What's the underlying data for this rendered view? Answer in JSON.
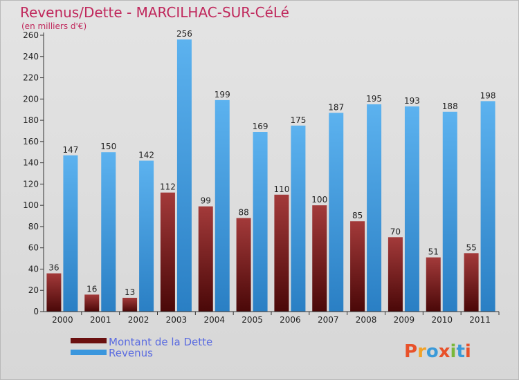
{
  "chart_data": {
    "type": "bar",
    "title": "Revenus/Dette - MARCILHAC-SUR-CéLé",
    "subtitle": "(en milliers d'€)",
    "categories": [
      "2000",
      "2001",
      "2002",
      "2003",
      "2004",
      "2005",
      "2006",
      "2007",
      "2008",
      "2009",
      "2010",
      "2011"
    ],
    "series": [
      {
        "name": "Montant de la Dette",
        "color": "#7a1a1a",
        "values": [
          36,
          16,
          13,
          112,
          99,
          88,
          110,
          100,
          85,
          70,
          51,
          55
        ]
      },
      {
        "name": "Revenus",
        "color": "#3a96dd",
        "values": [
          147,
          150,
          142,
          256,
          199,
          169,
          175,
          187,
          195,
          193,
          188,
          198
        ]
      }
    ],
    "ylim": [
      0,
      260
    ],
    "yticks": [
      0,
      20,
      40,
      60,
      80,
      100,
      120,
      140,
      160,
      180,
      200,
      220,
      240,
      260
    ],
    "grid": false,
    "legend": "bottom-left"
  },
  "branding": {
    "logo_text": "Proxiti",
    "logo_colors": [
      "#e8512a",
      "#f2a227",
      "#3a9ad9",
      "#e8512a",
      "#7ab83a",
      "#3a9ad9",
      "#e8512a"
    ]
  }
}
